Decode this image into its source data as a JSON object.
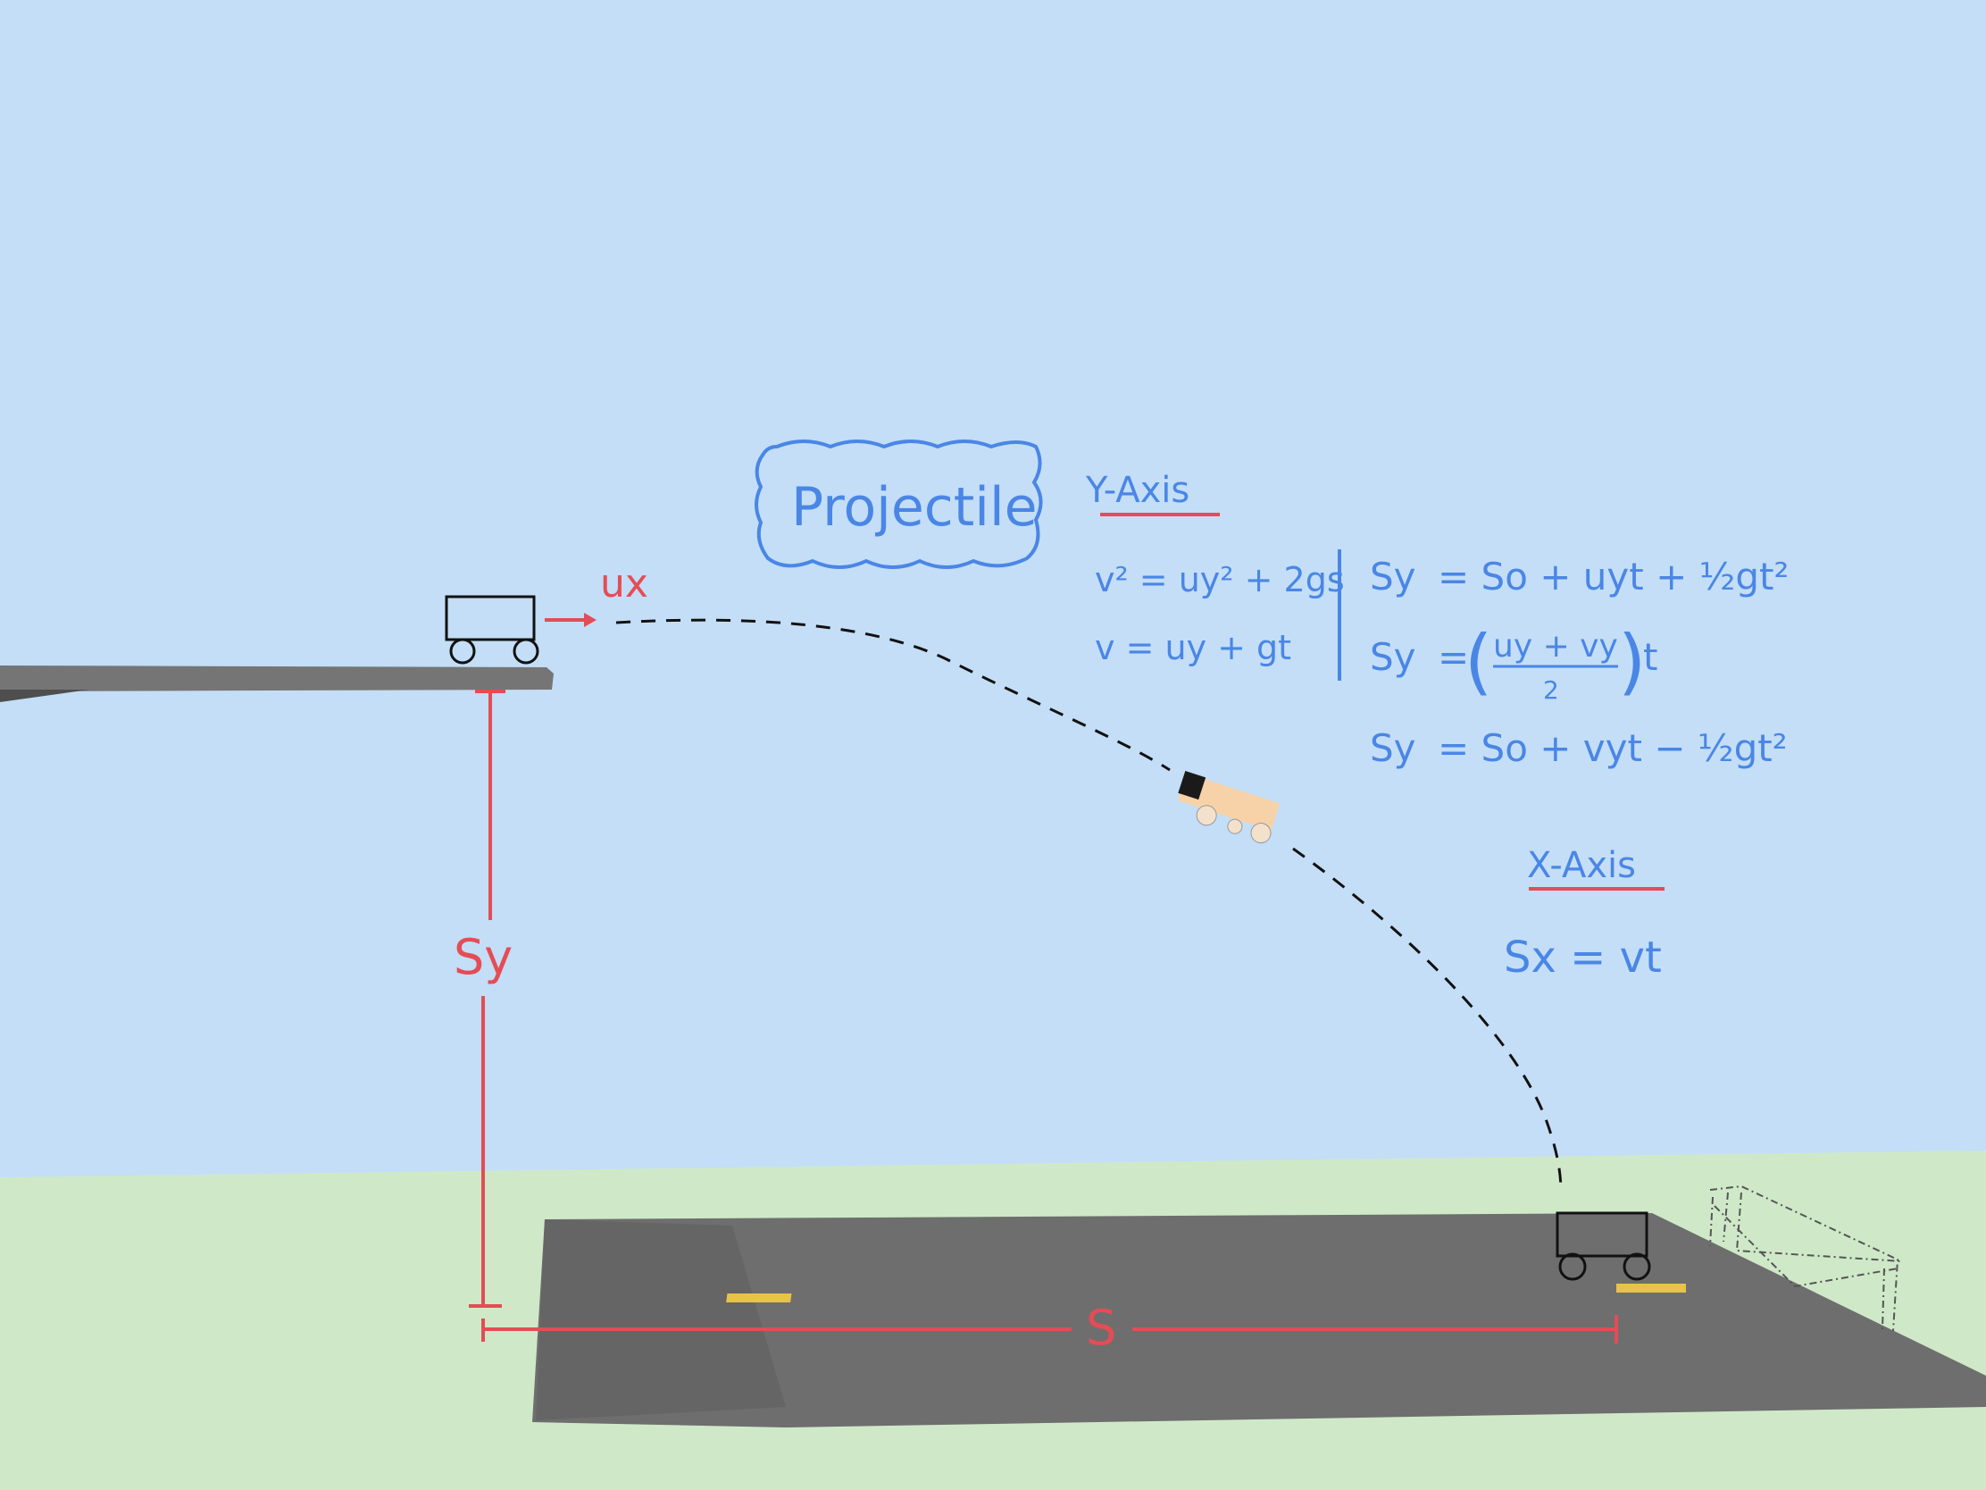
{
  "title": "Projectile",
  "colors": {
    "sky": "#c3def6",
    "ground": "#cfe9c8",
    "road": "#6e6e6e",
    "handwriting": "#4a86e6",
    "annotation": "#e54c55",
    "cart_body": "#f7d2a8"
  },
  "labels": {
    "initial_velocity": "ux",
    "vertical_displacement": "Sy",
    "horizontal_displacement": "S"
  },
  "y_axis": {
    "heading": "Y-Axis",
    "equations_left": [
      "v² = uy² + 2gs",
      "v = uy + gt"
    ],
    "equations_right": {
      "eq1": {
        "lhs": "Sy",
        "rhs": "= So + uyt + ½gt²"
      },
      "eq2": {
        "lhs": "Sy",
        "rhs_num": "uy + vy",
        "rhs_den": "2",
        "suffix": "t"
      },
      "eq3": {
        "lhs": "Sy",
        "rhs": "= So + vyt − ½gt²"
      }
    }
  },
  "x_axis": {
    "heading": "X-Axis",
    "equation": "Sx = vt"
  }
}
